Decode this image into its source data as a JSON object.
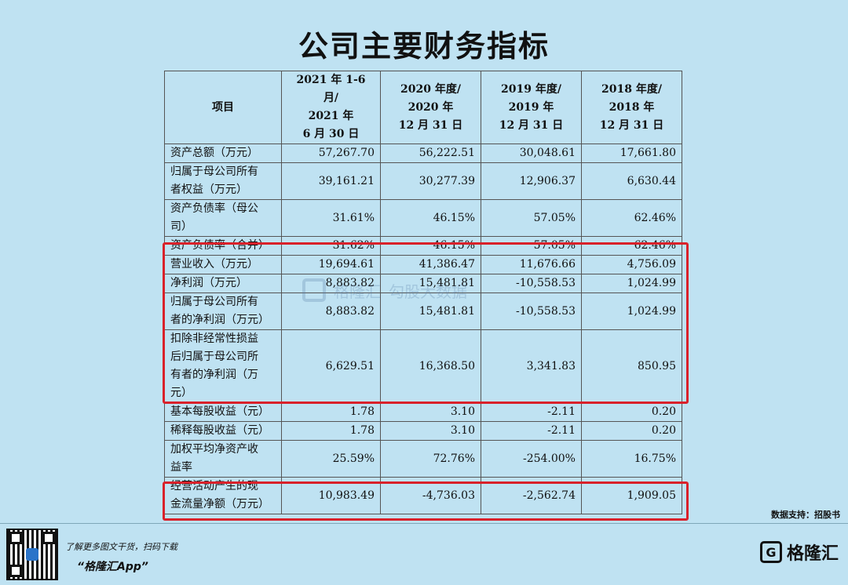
{
  "title": "公司主要财务指标",
  "table": {
    "headers": [
      [
        "项目"
      ],
      [
        "2021 年 1-6 月/",
        "2021 年",
        "6 月 30 日"
      ],
      [
        "2020 年度/",
        "2020 年",
        "12 月 31 日"
      ],
      [
        "2019 年度/",
        "2019 年",
        "12 月 31 日"
      ],
      [
        "2018 年度/",
        "2018 年",
        "12 月 31 日"
      ]
    ],
    "rows": [
      {
        "label": [
          "资产总额（万元）"
        ],
        "values": [
          "57,267.70",
          "56,222.51",
          "30,048.61",
          "17,661.80"
        ]
      },
      {
        "label": [
          "归属于母公司所有",
          "者权益（万元）"
        ],
        "values": [
          "39,161.21",
          "30,277.39",
          "12,906.37",
          "6,630.44"
        ]
      },
      {
        "label": [
          "资产负债率（母公",
          "司）"
        ],
        "values": [
          "31.61%",
          "46.15%",
          "57.05%",
          "62.46%"
        ]
      },
      {
        "label": [
          "资产负债率（合并）"
        ],
        "values": [
          "31.62%",
          "46.15%",
          "57.05%",
          "62.46%"
        ]
      },
      {
        "label": [
          "营业收入（万元）"
        ],
        "values": [
          "19,694.61",
          "41,386.47",
          "11,676.66",
          "4,756.09"
        ]
      },
      {
        "label": [
          "净利润（万元）"
        ],
        "values": [
          "8,883.82",
          "15,481.81",
          "-10,558.53",
          "1,024.99"
        ]
      },
      {
        "label": [
          "归属于母公司所有",
          "者的净利润（万元）"
        ],
        "values": [
          "8,883.82",
          "15,481.81",
          "-10,558.53",
          "1,024.99"
        ]
      },
      {
        "label": [
          "扣除非经常性损益",
          "后归属于母公司所",
          "有者的净利润（万",
          "元）"
        ],
        "values": [
          "6,629.51",
          "16,368.50",
          "3,341.83",
          "850.95"
        ]
      },
      {
        "label": [
          "基本每股收益（元）"
        ],
        "values": [
          "1.78",
          "3.10",
          "-2.11",
          "0.20"
        ]
      },
      {
        "label": [
          "稀释每股收益（元）"
        ],
        "values": [
          "1.78",
          "3.10",
          "-2.11",
          "0.20"
        ]
      },
      {
        "label": [
          "加权平均净资产收",
          "益率"
        ],
        "values": [
          "25.59%",
          "72.76%",
          "-254.00%",
          "16.75%"
        ]
      },
      {
        "label": [
          "经营活动产生的现",
          "金流量净额（万元）"
        ],
        "values": [
          "10,983.49",
          "-4,736.03",
          "-2,562.74",
          "1,909.05"
        ]
      }
    ]
  },
  "highlight_color": "#d9212a",
  "source": "数据支持：招股书",
  "footer": {
    "promo_line1": "了解更多图文干货，扫码下载",
    "promo_line2": "“格隆汇App”",
    "brand": "格隆汇",
    "brand_icon": "G-logo-icon"
  },
  "watermark": {
    "brand": "格隆汇",
    "sub": "勾股大数据"
  }
}
